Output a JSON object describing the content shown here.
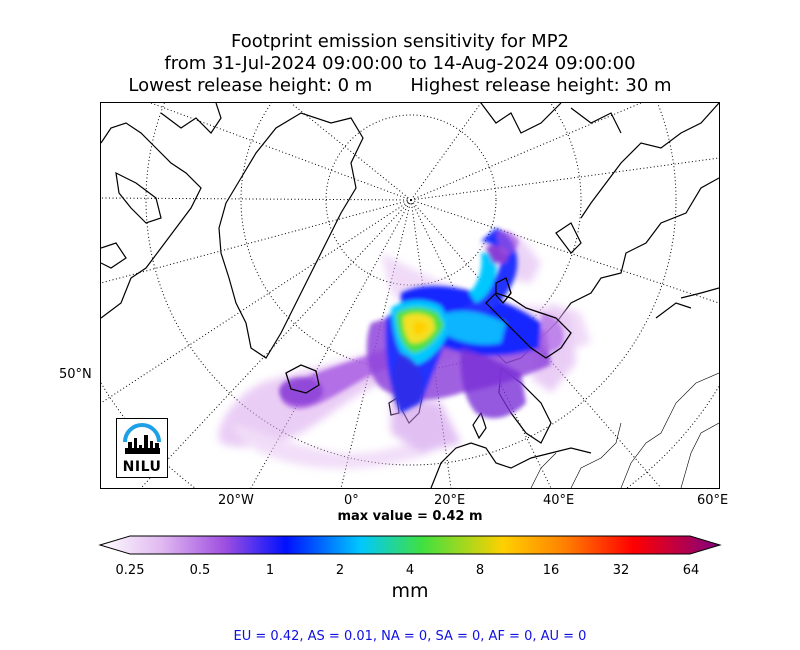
{
  "title": {
    "line1": "Footprint emission sensitivity for MP2",
    "line2": "from 31-Jul-2024 09:00:00 to 14-Aug-2024 09:00:00",
    "lowest": "Lowest release height: 0 m",
    "highest": "Highest release height: 30 m"
  },
  "map": {
    "lon_labels": [
      "20°W",
      "0°",
      "20°E",
      "40°E",
      "60°E"
    ],
    "lat_label": "50°N",
    "logo_text": "NILU",
    "max_value": "max value = 0.42 m"
  },
  "colorbar": {
    "ticks": [
      "0.25",
      "0.5",
      "1",
      "2",
      "4",
      "8",
      "16",
      "32",
      "64"
    ],
    "units": "mm",
    "colors": [
      "#ffffff",
      "#e0b8f0",
      "#a050e0",
      "#0010ff",
      "#00c8ff",
      "#40e040",
      "#ffd000",
      "#ff8000",
      "#ff0000",
      "#800080"
    ]
  },
  "footer": {
    "text": "EU = 0.42,  AS = 0.01,  NA = 0,  SA = 0,  AF = 0,  AU = 0"
  }
}
